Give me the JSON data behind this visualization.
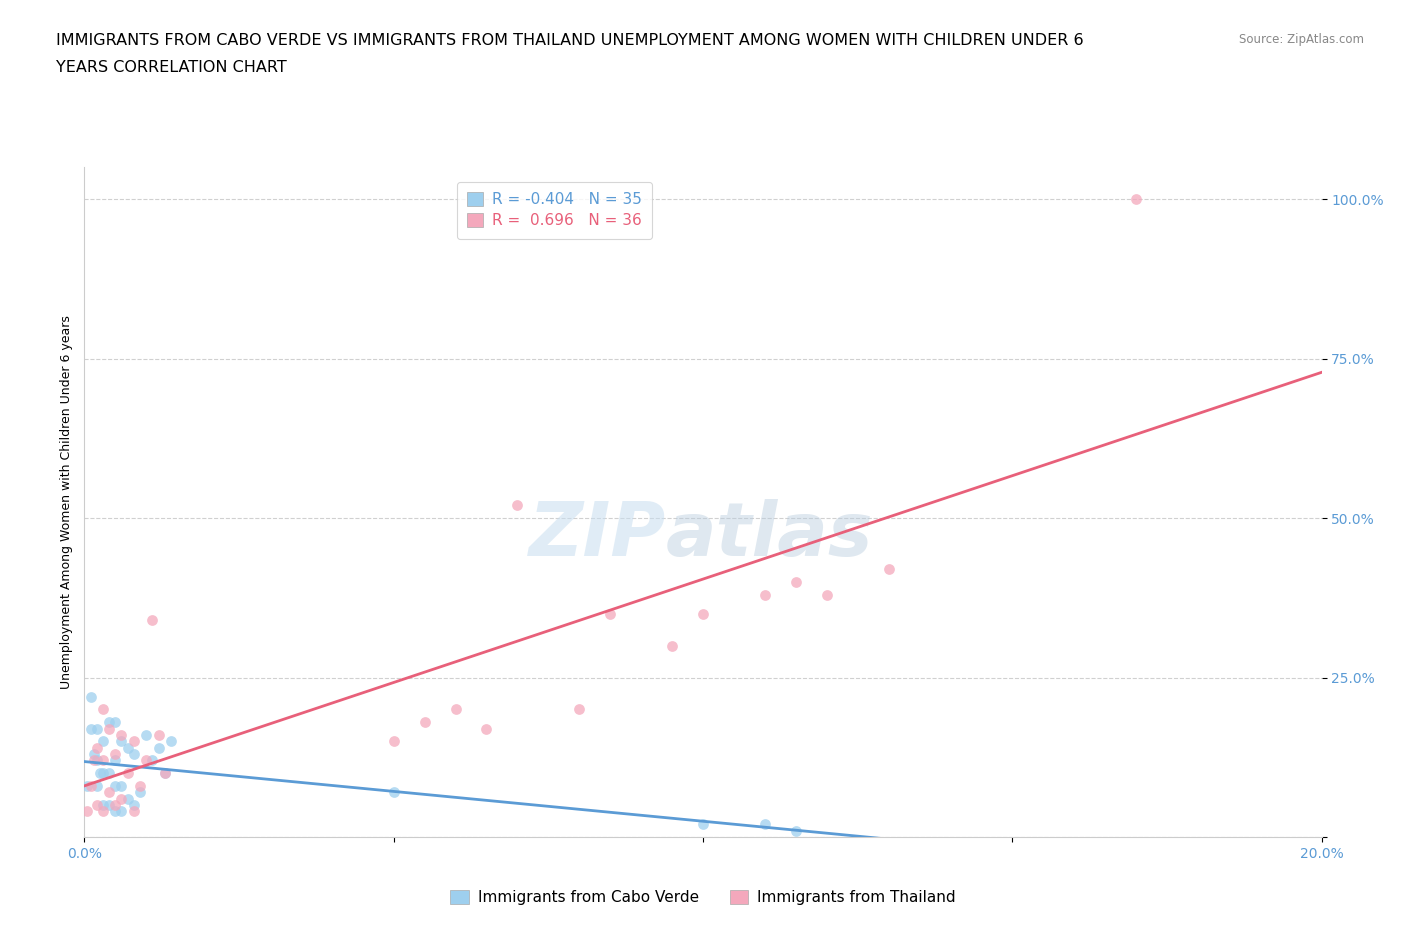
{
  "title_line1": "IMMIGRANTS FROM CABO VERDE VS IMMIGRANTS FROM THAILAND UNEMPLOYMENT AMONG WOMEN WITH CHILDREN UNDER 6",
  "title_line2": "YEARS CORRELATION CHART",
  "source": "Source: ZipAtlas.com",
  "ylabel": "Unemployment Among Women with Children Under 6 years",
  "xlim": [
    0.0,
    0.2
  ],
  "ylim": [
    0.0,
    1.05
  ],
  "xticks": [
    0.0,
    0.05,
    0.1,
    0.15,
    0.2
  ],
  "yticks": [
    0.0,
    0.25,
    0.5,
    0.75,
    1.0
  ],
  "xtick_labels": [
    "0.0%",
    "",
    "",
    "",
    "20.0%"
  ],
  "ytick_labels": [
    "",
    "25.0%",
    "50.0%",
    "75.0%",
    "100.0%"
  ],
  "cabo_verde_x": [
    0.0005,
    0.001,
    0.001,
    0.0015,
    0.002,
    0.002,
    0.002,
    0.0025,
    0.003,
    0.003,
    0.003,
    0.004,
    0.004,
    0.004,
    0.005,
    0.005,
    0.005,
    0.005,
    0.006,
    0.006,
    0.006,
    0.007,
    0.007,
    0.008,
    0.008,
    0.009,
    0.01,
    0.011,
    0.012,
    0.013,
    0.014,
    0.05,
    0.1,
    0.11,
    0.115
  ],
  "cabo_verde_y": [
    0.08,
    0.17,
    0.22,
    0.13,
    0.08,
    0.12,
    0.17,
    0.1,
    0.05,
    0.1,
    0.15,
    0.05,
    0.1,
    0.18,
    0.04,
    0.08,
    0.12,
    0.18,
    0.04,
    0.08,
    0.15,
    0.06,
    0.14,
    0.05,
    0.13,
    0.07,
    0.16,
    0.12,
    0.14,
    0.1,
    0.15,
    0.07,
    0.02,
    0.02,
    0.01
  ],
  "thailand_x": [
    0.0005,
    0.001,
    0.0015,
    0.002,
    0.002,
    0.003,
    0.003,
    0.003,
    0.004,
    0.004,
    0.005,
    0.005,
    0.006,
    0.006,
    0.007,
    0.008,
    0.008,
    0.009,
    0.01,
    0.011,
    0.012,
    0.013,
    0.05,
    0.055,
    0.06,
    0.065,
    0.07,
    0.08,
    0.085,
    0.095,
    0.1,
    0.11,
    0.115,
    0.12,
    0.13,
    0.17
  ],
  "thailand_y": [
    0.04,
    0.08,
    0.12,
    0.05,
    0.14,
    0.04,
    0.12,
    0.2,
    0.07,
    0.17,
    0.05,
    0.13,
    0.06,
    0.16,
    0.1,
    0.04,
    0.15,
    0.08,
    0.12,
    0.34,
    0.16,
    0.1,
    0.15,
    0.18,
    0.2,
    0.17,
    0.52,
    0.2,
    0.35,
    0.3,
    0.35,
    0.38,
    0.4,
    0.38,
    0.42,
    1.0
  ],
  "cabo_verde_color": "#9ECFEE",
  "thailand_color": "#F4A8BC",
  "cabo_verde_line_color": "#5B9BD5",
  "thailand_line_color": "#E8607A",
  "cabo_verde_R": -0.404,
  "cabo_verde_N": 35,
  "thailand_R": 0.696,
  "thailand_N": 36,
  "legend_label_cabo": "Immigrants from Cabo Verde",
  "legend_label_thailand": "Immigrants from Thailand",
  "watermark_zip": "ZIP",
  "watermark_atlas": "atlas",
  "background_color": "#ffffff",
  "grid_color": "#d0d0d0",
  "title_fontsize": 11.5,
  "axis_label_fontsize": 9,
  "tick_fontsize": 10,
  "legend_fontsize": 11
}
